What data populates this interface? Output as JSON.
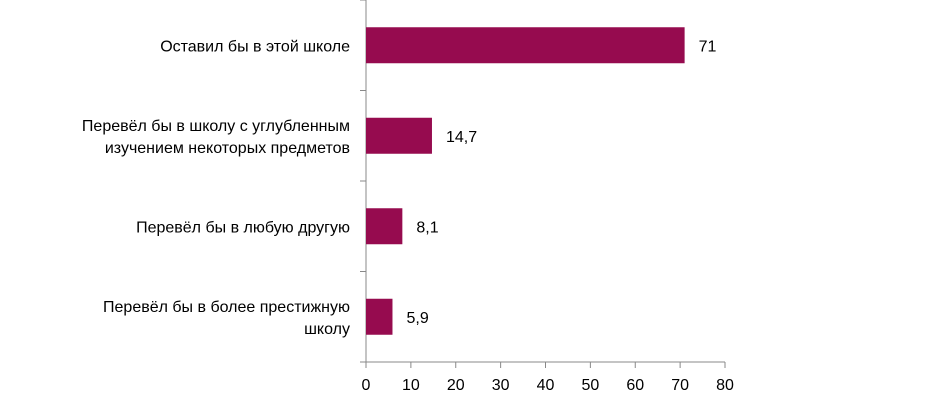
{
  "chart_data": {
    "type": "bar",
    "orientation": "horizontal",
    "categories": [
      [
        "Оставил бы в этой школе"
      ],
      [
        "Перевёл бы в школу с углубленным",
        "изучением некоторых предметов"
      ],
      [
        "Перевёл бы в любую другую"
      ],
      [
        "Перевёл бы в более престижную",
        "школу"
      ]
    ],
    "values": [
      71,
      14.7,
      8.1,
      5.9
    ],
    "value_labels": [
      "71",
      "14,7",
      "8,1",
      "5,9"
    ],
    "xlim": [
      0,
      80
    ],
    "xticks": [
      0,
      10,
      20,
      30,
      40,
      50,
      60,
      70,
      80
    ],
    "grid": false,
    "legend": "none",
    "bar_color": "#960b4f",
    "axis_color": "#888888"
  }
}
